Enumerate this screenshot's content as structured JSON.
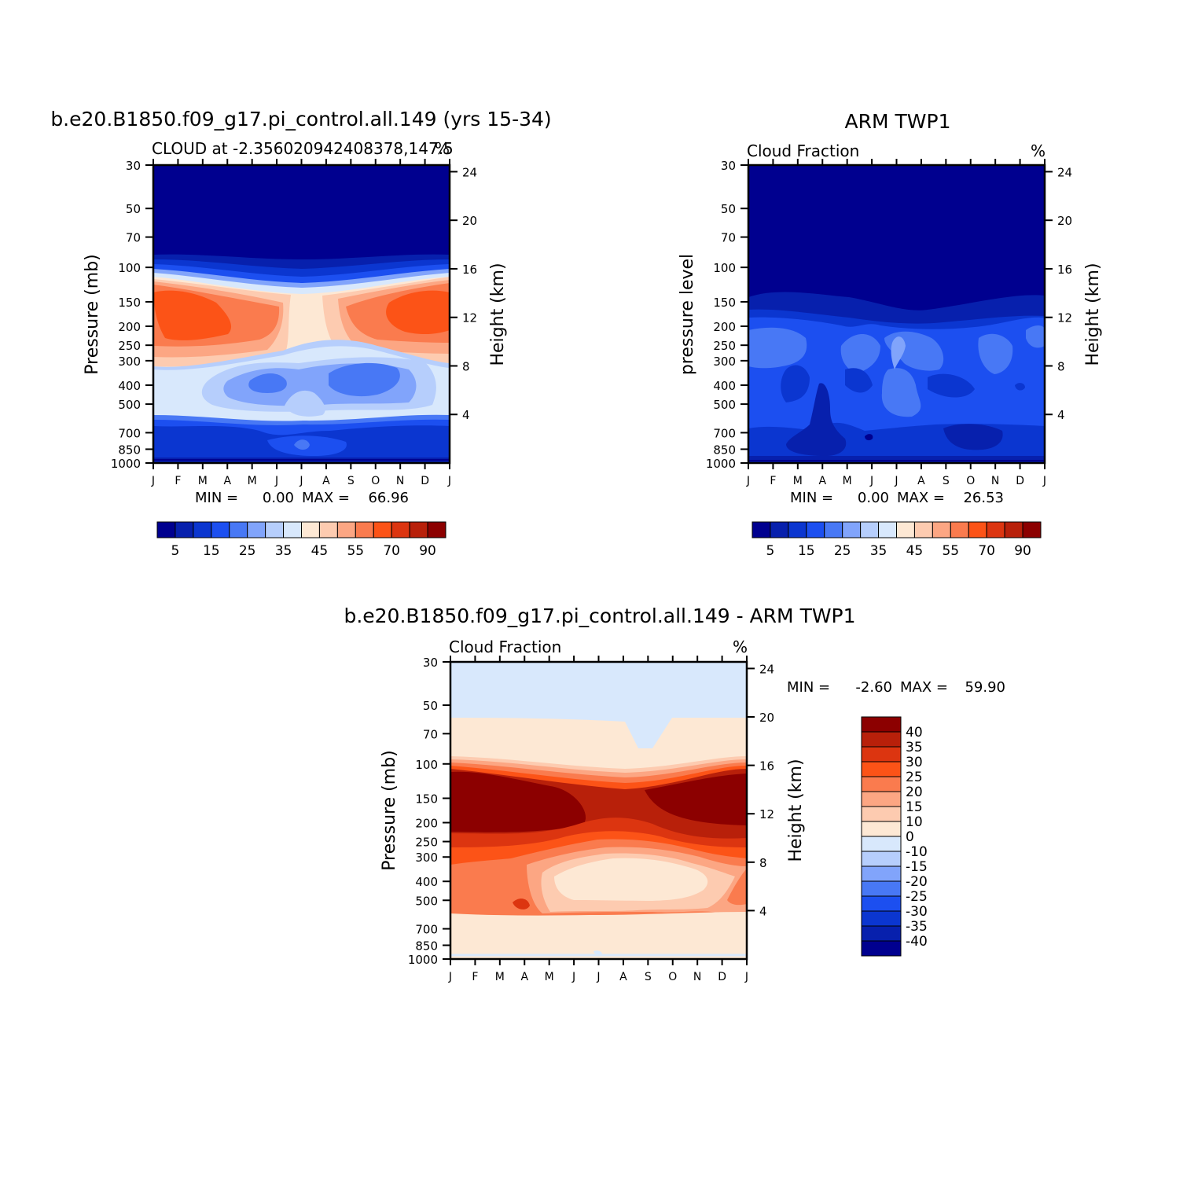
{
  "colors": {
    "fraction_scale": [
      "#00008f",
      "#0720ad",
      "#0b36d0",
      "#1c4ff0",
      "#4878f5",
      "#81a4fb",
      "#b6cefc",
      "#d8e8fc",
      "#fde8d4",
      "#fdcbb0",
      "#fca683",
      "#fa7b4e",
      "#fc5317",
      "#dc3510",
      "#b8200a",
      "#8c0000"
    ],
    "diff_scale": [
      "#00008f",
      "#0720ad",
      "#0b36d0",
      "#1c4ff0",
      "#4878f5",
      "#81a4fb",
      "#b6cefc",
      "#d8e8fc",
      "#fde8d4",
      "#fdcbb0",
      "#fca683",
      "#fa7b4e",
      "#fc5317",
      "#dc3510",
      "#b8200a",
      "#8c0000"
    ]
  },
  "chart_data": [
    {
      "type": "heatmap",
      "title": "b.e20.B1850.f09_g17.pi_control.all.149 (yrs 15-34)",
      "subtitle_left": "CLOUD at -2.356020942408378,147.5",
      "subtitle_right": "%",
      "ylabel": "Pressure (mb)",
      "y2label": "Height (km)",
      "x_ticks": [
        "J",
        "F",
        "M",
        "A",
        "M",
        "J",
        "J",
        "A",
        "S",
        "O",
        "N",
        "D",
        "J"
      ],
      "y_ticks": [
        "30",
        "50",
        "70",
        "100",
        "150",
        "200",
        "250",
        "300",
        "400",
        "500",
        "700",
        "850",
        "1000"
      ],
      "y2_ticks": [
        "24",
        "20",
        "16",
        "12",
        "8",
        "4"
      ],
      "y_scale": "log-pressure (top 30 mb, bottom 1000 mb)",
      "stats": {
        "min_label": "MIN =",
        "min": "0.00",
        "max_label": "MAX =",
        "max": "66.96"
      },
      "colorbar": {
        "orientation": "horizontal",
        "labels": [
          "5",
          "15",
          "25",
          "35",
          "45",
          "55",
          "70",
          "90"
        ]
      }
    },
    {
      "type": "heatmap",
      "title": "ARM TWP1",
      "subtitle_left": "Cloud Fraction",
      "subtitle_right": "%",
      "ylabel": "pressure level",
      "y2label": "Height (km)",
      "x_ticks": [
        "J",
        "F",
        "M",
        "A",
        "M",
        "J",
        "J",
        "A",
        "S",
        "O",
        "N",
        "D",
        "J"
      ],
      "y_ticks": [
        "30",
        "50",
        "70",
        "100",
        "150",
        "200",
        "250",
        "300",
        "400",
        "500",
        "700",
        "850",
        "1000"
      ],
      "y2_ticks": [
        "24",
        "20",
        "16",
        "12",
        "8",
        "4"
      ],
      "y_scale": "log-pressure (top 30 mb, bottom 1000 mb)",
      "stats": {
        "min_label": "MIN =",
        "min": "0.00",
        "max_label": "MAX =",
        "max": "26.53"
      },
      "colorbar": {
        "orientation": "horizontal",
        "labels": [
          "5",
          "15",
          "25",
          "35",
          "45",
          "55",
          "70",
          "90"
        ]
      }
    },
    {
      "type": "heatmap",
      "title": "b.e20.B1850.f09_g17.pi_control.all.149 - ARM TWP1",
      "subtitle_left": "Cloud Fraction",
      "subtitle_right": "%",
      "ylabel": "Pressure (mb)",
      "y2label": "Height (km)",
      "x_ticks": [
        "J",
        "F",
        "M",
        "A",
        "M",
        "J",
        "J",
        "A",
        "S",
        "O",
        "N",
        "D",
        "J"
      ],
      "y_ticks": [
        "30",
        "50",
        "70",
        "100",
        "150",
        "200",
        "250",
        "300",
        "400",
        "500",
        "700",
        "850",
        "1000"
      ],
      "y2_ticks": [
        "24",
        "20",
        "16",
        "12",
        "8",
        "4"
      ],
      "y_scale": "log-pressure (top 30 mb, bottom 1000 mb)",
      "stats": {
        "min_label": "MIN =",
        "min": "-2.60",
        "max_label": "MAX =",
        "max": "59.90"
      },
      "colorbar": {
        "orientation": "vertical",
        "labels": [
          "40",
          "35",
          "30",
          "25",
          "20",
          "15",
          "10",
          "0",
          "-10",
          "-15",
          "-20",
          "-25",
          "-30",
          "-35",
          "-40"
        ]
      }
    }
  ]
}
